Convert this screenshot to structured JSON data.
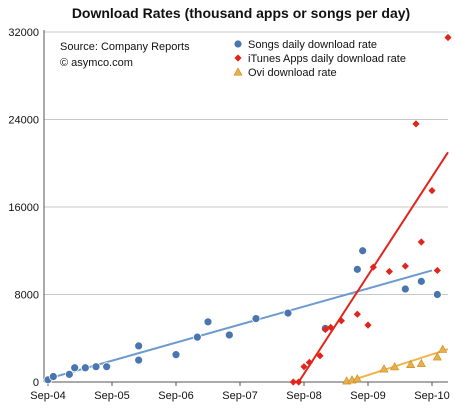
{
  "chart_data": {
    "type": "scatter",
    "title": "Download Rates (thousand apps or songs per day)",
    "annotations": [
      "Source: Company Reports",
      "© asymco.com"
    ],
    "xlabel": "",
    "ylabel": "",
    "x_tick_labels": [
      "Sep-04",
      "Sep-05",
      "Sep-06",
      "Sep-07",
      "Sep-08",
      "Sep-09",
      "Sep-10"
    ],
    "xlim": [
      "2004-09",
      "2010-12"
    ],
    "y_ticks": [
      0,
      8000,
      16000,
      24000,
      32000
    ],
    "ylim": [
      0,
      32000
    ],
    "grid": true,
    "legend_position": "top-right",
    "series": [
      {
        "name": "Songs daily download rate",
        "marker": "circle",
        "color": "#4a76b0",
        "trend_color": "#6d9bd0",
        "points": [
          {
            "x": "2004-09",
            "y": 200
          },
          {
            "x": "2004-10",
            "y": 500
          },
          {
            "x": "2005-01",
            "y": 700
          },
          {
            "x": "2005-02",
            "y": 1300
          },
          {
            "x": "2005-04",
            "y": 1300
          },
          {
            "x": "2005-06",
            "y": 1400
          },
          {
            "x": "2005-08",
            "y": 1400
          },
          {
            "x": "2006-02",
            "y": 2000
          },
          {
            "x": "2006-02",
            "y": 3300
          },
          {
            "x": "2006-09",
            "y": 2500
          },
          {
            "x": "2007-01",
            "y": 4100
          },
          {
            "x": "2007-03",
            "y": 5500
          },
          {
            "x": "2007-07",
            "y": 4300
          },
          {
            "x": "2007-12",
            "y": 5800
          },
          {
            "x": "2008-06",
            "y": 6300
          },
          {
            "x": "2009-01",
            "y": 4900
          },
          {
            "x": "2009-07",
            "y": 10300
          },
          {
            "x": "2009-08",
            "y": 12000
          },
          {
            "x": "2010-04",
            "y": 8500
          },
          {
            "x": "2010-07",
            "y": 9200
          },
          {
            "x": "2010-10",
            "y": 8000
          }
        ],
        "trend": [
          {
            "x": "2004-09",
            "y": 300
          },
          {
            "x": "2010-09",
            "y": 10200
          }
        ]
      },
      {
        "name": "iTunes Apps daily download rate",
        "marker": "diamond",
        "color": "#e2251b",
        "trend_color": "#e2251b",
        "points": [
          {
            "x": "2008-07",
            "y": 0
          },
          {
            "x": "2008-08",
            "y": 0
          },
          {
            "x": "2008-09",
            "y": 1400
          },
          {
            "x": "2008-10",
            "y": 1800
          },
          {
            "x": "2008-12",
            "y": 2400
          },
          {
            "x": "2009-01",
            "y": 4800
          },
          {
            "x": "2009-02",
            "y": 5000
          },
          {
            "x": "2009-04",
            "y": 5600
          },
          {
            "x": "2009-07",
            "y": 6200
          },
          {
            "x": "2009-09",
            "y": 5200
          },
          {
            "x": "2009-10",
            "y": 10500
          },
          {
            "x": "2010-01",
            "y": 10100
          },
          {
            "x": "2010-04",
            "y": 10600
          },
          {
            "x": "2010-06",
            "y": 23600
          },
          {
            "x": "2010-07",
            "y": 12800
          },
          {
            "x": "2010-09",
            "y": 17500
          },
          {
            "x": "2010-10",
            "y": 10200
          },
          {
            "x": "2010-12",
            "y": 31500
          }
        ],
        "trend": [
          {
            "x": "2008-08",
            "y": 0
          },
          {
            "x": "2010-12",
            "y": 21000
          }
        ]
      },
      {
        "name": "Ovi download rate",
        "marker": "triangle",
        "color": "#e8b04a",
        "trend_color": "#efb54c",
        "points": [
          {
            "x": "2009-05",
            "y": 100
          },
          {
            "x": "2009-06",
            "y": 200
          },
          {
            "x": "2009-07",
            "y": 300
          },
          {
            "x": "2009-12",
            "y": 1200
          },
          {
            "x": "2010-02",
            "y": 1400
          },
          {
            "x": "2010-05",
            "y": 1600
          },
          {
            "x": "2010-07",
            "y": 1700
          },
          {
            "x": "2010-10",
            "y": 2300
          },
          {
            "x": "2010-11",
            "y": 3000
          }
        ],
        "trend": [
          {
            "x": "2009-05",
            "y": 0
          },
          {
            "x": "2010-12",
            "y": 3000
          }
        ]
      }
    ]
  }
}
